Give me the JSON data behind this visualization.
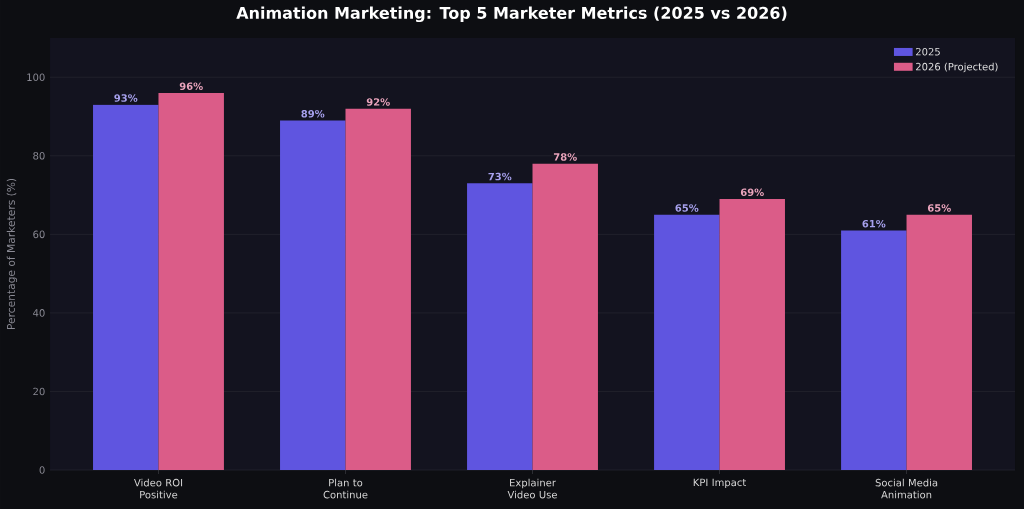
{
  "chart_data": {
    "type": "bar",
    "title": "Animation Marketing: Top 5 Marketer Metrics (2025 vs 2026)",
    "ylabel": "Percentage of Marketers (%)",
    "categories": [
      "Video ROI Positive",
      "Plan to Continue",
      "Explainer Video Use",
      "KPI Impact",
      "Social Media Animation"
    ],
    "series": [
      {
        "name": "2025",
        "color": "#5f55e0",
        "values": [
          93,
          89,
          73,
          65,
          61
        ],
        "value_labels": [
          "93%",
          "89%",
          "73%",
          "65%",
          "61%"
        ]
      },
      {
        "name": "2026 (Projected)",
        "color": "#db5c88",
        "values": [
          96,
          92,
          78,
          69,
          65
        ],
        "value_labels": [
          "96%",
          "92%",
          "78%",
          "69%",
          "65%"
        ]
      }
    ],
    "ylim": [
      0,
      110
    ],
    "yticks": [
      0,
      20,
      40,
      60,
      80,
      100
    ],
    "grid": "y",
    "legend": "top right"
  }
}
